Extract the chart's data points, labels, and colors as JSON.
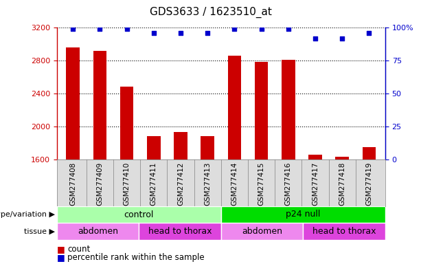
{
  "title": "GDS3633 / 1623510_at",
  "samples": [
    "GSM277408",
    "GSM277409",
    "GSM277410",
    "GSM277411",
    "GSM277412",
    "GSM277413",
    "GSM277414",
    "GSM277415",
    "GSM277416",
    "GSM277417",
    "GSM277418",
    "GSM277419"
  ],
  "counts": [
    2960,
    2920,
    2490,
    1890,
    1940,
    1885,
    2860,
    2790,
    2810,
    1660,
    1640,
    1750
  ],
  "percentiles": [
    99,
    99,
    99,
    96,
    96,
    96,
    99,
    99,
    99,
    92,
    92,
    96
  ],
  "ylim_left": [
    1600,
    3200
  ],
  "ylim_right": [
    0,
    100
  ],
  "yticks_left": [
    1600,
    2000,
    2400,
    2800,
    3200
  ],
  "yticks_right": [
    0,
    25,
    50,
    75,
    100
  ],
  "bar_color": "#cc0000",
  "dot_color": "#0000cc",
  "genotype_groups": [
    {
      "label": "control",
      "start": 0,
      "end": 6,
      "color": "#aaffaa"
    },
    {
      "label": "p24 null",
      "start": 6,
      "end": 12,
      "color": "#00dd00"
    }
  ],
  "tissue_groups": [
    {
      "label": "abdomen",
      "start": 0,
      "end": 3,
      "color": "#ee88ee"
    },
    {
      "label": "head to thorax",
      "start": 3,
      "end": 6,
      "color": "#dd44dd"
    },
    {
      "label": "abdomen",
      "start": 6,
      "end": 9,
      "color": "#ee88ee"
    },
    {
      "label": "head to thorax",
      "start": 9,
      "end": 12,
      "color": "#dd44dd"
    }
  ],
  "legend_count_color": "#cc0000",
  "legend_pct_color": "#0000cc",
  "background_color": "#ffffff",
  "title_fontsize": 11,
  "tick_fontsize": 8,
  "label_fontsize": 9
}
